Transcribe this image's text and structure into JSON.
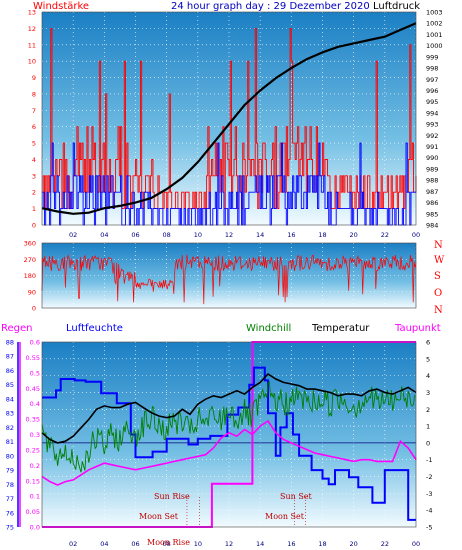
{
  "header": {
    "left_label": "Windstärke",
    "title": "24 hour graph day : 29 Dezember 2020",
    "right_label": "Luftdruck"
  },
  "panel3_header": {
    "regen": "Regen",
    "luftfeuchte": "Luftfeuchte",
    "windchill": "Windchill",
    "temperatur": "Temperatur",
    "taupunkt": "Taupunkt"
  },
  "annotations": {
    "sun_rise": "Sun Rise",
    "sun_set": "Sun Set",
    "moon_set": "Moon Set",
    "moon_rise": "Moon Rise"
  },
  "x_ticks": [
    "02",
    "04",
    "06",
    "08",
    "10",
    "12",
    "14",
    "16",
    "18",
    "20",
    "22",
    "00"
  ],
  "compass_labels": [
    "N",
    "W",
    "S",
    "O",
    "N"
  ],
  "colors": {
    "wind": "#ff0000",
    "gust": "#0000ff",
    "pressure": "#000000",
    "direction": "#ff0000",
    "rain": "#ff00ff",
    "humidity": "#0000ff",
    "windchill": "#008000",
    "temperature": "#000000",
    "dewpoint": "#ff00ff",
    "axis_text": "#ff0000",
    "grid": "#ffffff"
  },
  "chart_data": [
    {
      "type": "line",
      "name": "wind-pressure",
      "x_range": [
        0,
        24
      ],
      "y_left": {
        "label": "Windstärke",
        "range": [
          0,
          13
        ],
        "ticks": [
          0,
          1,
          2,
          3,
          4,
          5,
          6,
          7,
          8,
          9,
          10,
          11,
          12,
          13
        ]
      },
      "y_right": {
        "label": "Luftdruck",
        "range": [
          984,
          1003
        ],
        "ticks": [
          984,
          985,
          986,
          987,
          988,
          989,
          990,
          991,
          992,
          993,
          994,
          995,
          996,
          997,
          998,
          999,
          1000,
          1001,
          1002,
          1003
        ]
      },
      "series": [
        {
          "name": "Luftdruck",
          "axis": "right",
          "x": [
            0,
            1,
            2,
            3,
            4,
            5,
            6,
            7,
            8,
            9,
            10,
            11,
            12,
            13,
            14,
            15,
            16,
            17,
            18,
            19,
            20,
            21,
            22,
            23,
            24
          ],
          "y": [
            985.5,
            985.2,
            985.0,
            985.1,
            985.5,
            985.7,
            986.0,
            986.4,
            987.2,
            988.2,
            989.6,
            991.3,
            993.0,
            994.7,
            996.0,
            997.1,
            998.0,
            998.8,
            999.4,
            999.9,
            1000.2,
            1000.5,
            1000.8,
            1001.4,
            1002.0
          ]
        }
      ]
    },
    {
      "type": "line",
      "name": "wind-direction",
      "x_range": [
        0,
        24
      ],
      "y_left": {
        "range": [
          0,
          360
        ],
        "ticks": [
          0,
          90,
          180,
          270,
          360
        ]
      }
    },
    {
      "type": "line",
      "name": "weather",
      "x_range": [
        0,
        24
      ],
      "y_regen": {
        "label": "Regen",
        "range": [
          0,
          0.6
        ],
        "ticks": [
          0,
          0.05,
          0.1,
          0.15,
          0.2,
          0.25,
          0.3,
          0.35,
          0.4,
          0.45,
          0.5,
          0.55,
          0.6
        ]
      },
      "y_humidity": {
        "label": "Luftfeuchte",
        "range": [
          75,
          88
        ],
        "ticks": [
          75,
          76,
          77,
          78,
          79,
          80,
          81,
          82,
          83,
          84,
          85,
          86,
          87,
          88
        ]
      },
      "y_temp": {
        "label": "Temperatur",
        "range": [
          -5,
          6
        ],
        "ticks": [
          -5,
          -4,
          -3,
          -2,
          -1,
          0,
          1,
          2,
          3,
          4,
          5,
          6
        ]
      },
      "series": [
        {
          "name": "Regen",
          "axis": "regen",
          "x": [
            0,
            10.9,
            10.9,
            13.5,
            13.5,
            24
          ],
          "y": [
            0,
            0,
            0.14,
            0.14,
            0.6,
            0.6
          ]
        },
        {
          "name": "Luftfeuchte",
          "axis": "humidity",
          "x": [
            0,
            0.9,
            0.9,
            1.2,
            1.2,
            2.1,
            2.1,
            2.8,
            2.8,
            3.8,
            3.8,
            4.8,
            4.8,
            5.7,
            5.7,
            6.0,
            6.0,
            7.1,
            7.1,
            8.0,
            8.0,
            9.4,
            9.4,
            10.0,
            10.0,
            10.8,
            10.8,
            11.9,
            11.9,
            12.6,
            12.6,
            13.3,
            13.3,
            13.6,
            13.6,
            13.9,
            13.9,
            14.3,
            14.3,
            14.5,
            14.5,
            15.0,
            15.0,
            15.3,
            15.3,
            15.7,
            15.7,
            16.1,
            16.1,
            16.5,
            16.5,
            17.3,
            17.3,
            18.0,
            18.0,
            18.4,
            18.4,
            18.8,
            18.8,
            19.7,
            19.7,
            20.3,
            20.3,
            21.2,
            21.2,
            22.0,
            22.0,
            23.5,
            23.5,
            24
          ],
          "y": [
            84.1,
            84.1,
            84.6,
            84.6,
            85.4,
            85.4,
            85.3,
            85.3,
            85.2,
            85.2,
            84.4,
            84.4,
            83.7,
            83.7,
            81.5,
            81.5,
            79.9,
            79.9,
            80.3,
            80.3,
            81.2,
            81.2,
            80.8,
            80.8,
            81.2,
            81.2,
            81.4,
            81.4,
            82.9,
            82.9,
            83.4,
            83.4,
            85.0,
            85.0,
            86.2,
            86.2,
            86.2,
            86.2,
            85.3,
            85.3,
            83.0,
            83.0,
            80.0,
            80.0,
            82.0,
            82.0,
            83.0,
            83.0,
            81.5,
            81.5,
            80.0,
            80.0,
            79.0,
            79.0,
            78.4,
            78.4,
            78.0,
            78.0,
            79.0,
            79.0,
            78.5,
            78.5,
            77.8,
            77.8,
            76.7,
            76.7,
            79.0,
            79.0,
            75.5,
            75.5
          ]
        },
        {
          "name": "Windchill",
          "axis": "temp",
          "x": [
            0,
            0.5,
            1,
            1.5,
            2,
            2.5,
            3,
            3.5,
            4,
            4.5,
            5,
            5.5,
            6,
            6.5,
            7,
            7.5,
            8,
            8.5,
            9,
            9.5,
            10,
            10.5,
            11,
            11.5,
            12,
            12.5,
            13,
            13.5,
            14,
            14.5,
            15,
            15.5,
            16,
            16.5,
            17,
            17.5,
            18,
            18.5,
            19,
            19.5,
            20,
            20.5,
            21,
            21.5,
            22,
            22.5,
            23,
            23.5,
            24
          ],
          "y": [
            0.7,
            -0.4,
            -0.8,
            -0.5,
            -0.9,
            -1.3,
            -0.5,
            0.3,
            -0.2,
            0.5,
            0.2,
            0.8,
            0.5,
            1.1,
            1.5,
            1.0,
            0.8,
            1.3,
            1.2,
            0.6,
            1.4,
            1.1,
            1.6,
            1.3,
            2.0,
            1.4,
            1.8,
            1.5,
            2.4,
            2.9,
            2.6,
            2.3,
            2.5,
            2.7,
            2.5,
            2.4,
            2.6,
            2.3,
            2.7,
            2.5,
            2.1,
            2.5,
            2.8,
            2.4,
            2.6,
            2.5,
            2.7,
            2.6,
            2.6
          ]
        },
        {
          "name": "Temperatur",
          "axis": "temp",
          "x": [
            0,
            0.5,
            1,
            1.5,
            2,
            2.5,
            3,
            3.5,
            4,
            4.5,
            5,
            5.5,
            6,
            6.5,
            7,
            7.5,
            8,
            8.5,
            9,
            9.5,
            10,
            10.5,
            11,
            11.5,
            12,
            12.5,
            13,
            13.5,
            14,
            14.5,
            15,
            15.5,
            16,
            16.5,
            17,
            17.5,
            18,
            18.5,
            19,
            19.5,
            20,
            20.5,
            21,
            21.5,
            22,
            22.5,
            23,
            23.5,
            24
          ],
          "y": [
            0.6,
            0.2,
            0.0,
            0.1,
            0.4,
            0.9,
            1.4,
            2.0,
            2.2,
            2.1,
            2.1,
            2.3,
            2.4,
            2.1,
            1.8,
            1.6,
            1.5,
            1.6,
            2.0,
            1.7,
            2.3,
            2.6,
            2.8,
            2.7,
            2.9,
            3.1,
            2.9,
            3.3,
            3.6,
            4.1,
            3.8,
            3.6,
            3.5,
            3.4,
            3.2,
            3.2,
            3.1,
            3.0,
            2.8,
            2.9,
            2.9,
            2.8,
            3.1,
            3.2,
            3.0,
            2.9,
            3.1,
            3.3,
            3.0
          ]
        },
        {
          "name": "Taupunkt",
          "axis": "temp",
          "x": [
            0,
            0.5,
            1,
            1.5,
            2,
            2.5,
            3,
            3.5,
            4,
            4.5,
            5,
            5.5,
            6,
            6.5,
            7,
            7.5,
            8,
            8.5,
            9,
            9.5,
            10,
            10.5,
            11,
            11.5,
            12,
            12.5,
            13,
            13.5,
            14,
            14.5,
            15,
            15.5,
            16,
            16.5,
            17,
            17.5,
            18,
            18.5,
            19,
            19.5,
            20,
            20.5,
            21,
            21.5,
            22,
            22.5,
            23,
            23.5,
            24
          ],
          "y": [
            -2.0,
            -2.3,
            -2.5,
            -2.3,
            -2.2,
            -1.9,
            -1.6,
            -1.4,
            -1.2,
            -1.3,
            -1.4,
            -1.5,
            -1.6,
            -1.5,
            -1.4,
            -1.3,
            -1.2,
            -1.1,
            -1.0,
            -0.9,
            -0.8,
            -0.7,
            -0.3,
            0.3,
            0.6,
            0.4,
            0.8,
            0.5,
            1.0,
            1.3,
            0.6,
            0.2,
            0.0,
            -0.2,
            -0.4,
            -0.6,
            -0.7,
            -0.8,
            -0.9,
            -1.0,
            -1.1,
            -1.0,
            -1.0,
            -1.1,
            -1.1,
            -1.1,
            0.1,
            -0.3,
            -1.0
          ]
        }
      ]
    }
  ]
}
